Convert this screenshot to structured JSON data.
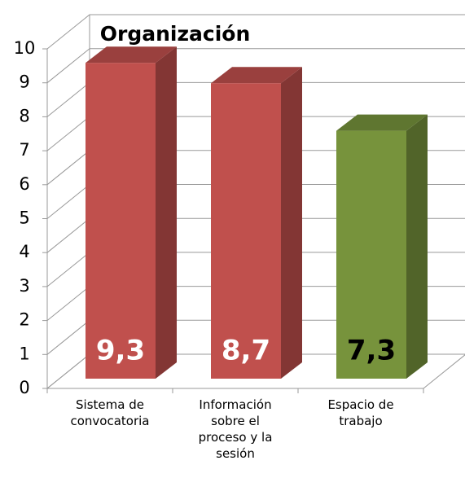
{
  "chart_data": {
    "type": "bar3d",
    "title": "Organización",
    "categories": [
      "Sistema de convocatoria",
      "Información sobre el proceso y la sesión",
      "Espacio de trabajo"
    ],
    "values": [
      9.3,
      8.7,
      7.3
    ],
    "value_labels": [
      "9,3",
      "8,7",
      "7,3"
    ],
    "colors": [
      "#c0504d",
      "#c0504d",
      "#77933c"
    ],
    "value_label_colors": [
      "#ffffff",
      "#ffffff",
      "#000000"
    ],
    "ylim": [
      0,
      10
    ],
    "yticks": [
      0,
      1,
      2,
      3,
      4,
      5,
      6,
      7,
      8,
      9,
      10
    ],
    "grid": true
  }
}
